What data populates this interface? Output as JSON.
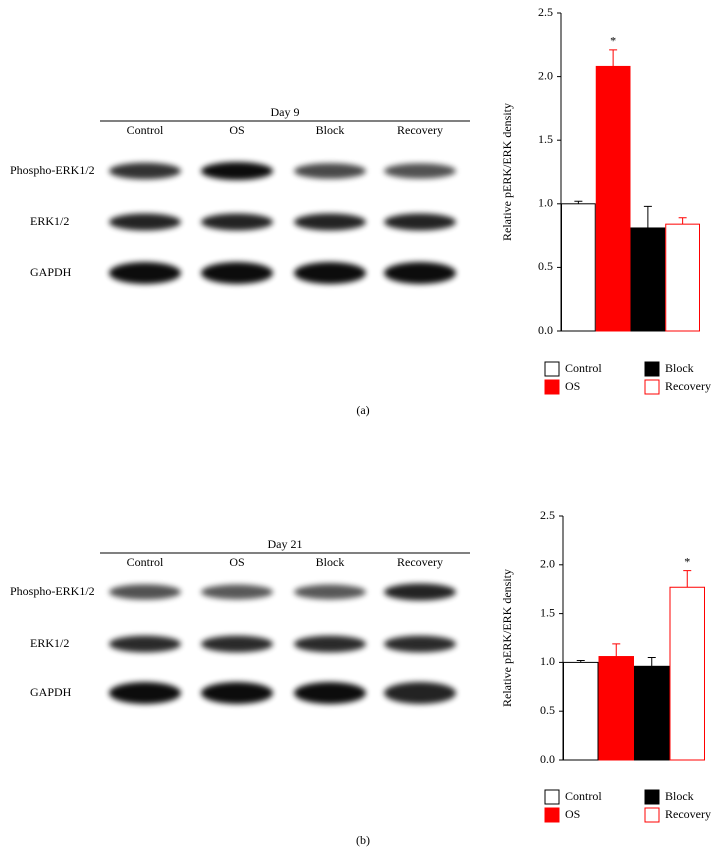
{
  "chart_data": [
    {
      "type": "bar",
      "y_label": "Relative pERK/ERK density",
      "categories": [
        "Control",
        "OS",
        "Block",
        "Recovery"
      ],
      "values": [
        1.0,
        2.08,
        0.81,
        0.84
      ],
      "errors": [
        0.02,
        0.13,
        0.17,
        0.05
      ],
      "significance": [
        null,
        "*",
        null,
        null
      ],
      "colors": [
        "#ffffff",
        "#ff0000",
        "#000000",
        "#ffffff"
      ],
      "edgecolors": [
        "#000000",
        "#ff0000",
        "#000000",
        "#ff0000"
      ],
      "ylim": [
        0,
        2.5
      ],
      "yticks": [
        {
          "value": 0,
          "label": "0.0"
        },
        0.5,
        {
          "value": 1,
          "label": "1.0"
        },
        1.5,
        {
          "value": 2,
          "label": "2.0"
        },
        2.5
      ]
    },
    {
      "type": "bar",
      "y_label": "Relative pERK/ERK density",
      "categories": [
        "Control",
        "OS",
        "Block",
        "Recovery"
      ],
      "values": [
        1.0,
        1.06,
        0.96,
        1.77
      ],
      "errors": [
        0.02,
        0.13,
        0.09,
        0.17
      ],
      "significance": [
        null,
        null,
        null,
        "*"
      ],
      "colors": [
        "#ffffff",
        "#ff0000",
        "#000000",
        "#ffffff"
      ],
      "edgecolors": [
        "#000000",
        "#ff0000",
        "#000000",
        "#ff0000"
      ],
      "ylim": [
        0,
        2.5
      ],
      "yticks": [
        {
          "value": 0,
          "label": "0.0"
        },
        0.5,
        {
          "value": 1,
          "label": "1.0"
        },
        1.5,
        {
          "value": 2,
          "label": "2.0"
        },
        2.5
      ]
    }
  ],
  "blots": [
    {
      "title": "Day 9",
      "lanes": [
        "Control",
        "OS",
        "Block",
        "Recovery"
      ],
      "rows": [
        "Phospho-ERK1/2",
        "ERK1/2",
        "GAPDH"
      ]
    },
    {
      "title": "Day 21",
      "lanes": [
        "Control",
        "OS",
        "Block",
        "Recovery"
      ],
      "rows": [
        "Phospho-ERK1/2",
        "ERK1/2",
        "GAPDH"
      ]
    }
  ],
  "captions": [
    "(a)",
    "(b)"
  ]
}
